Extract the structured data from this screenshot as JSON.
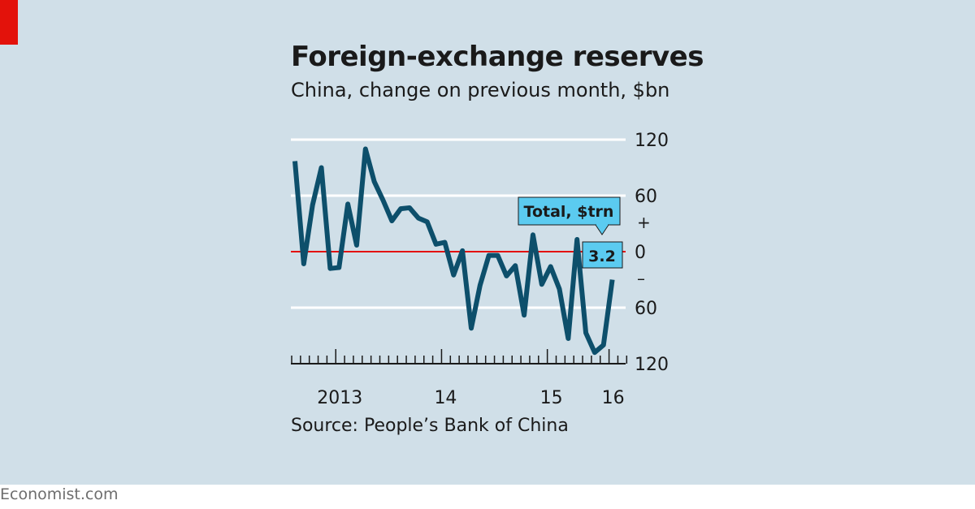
{
  "title": "Foreign-exchange reserves",
  "subtitle": "China, change on previous month, $bn",
  "source": "Source: People’s Bank of China",
  "footer": "Economist.com",
  "colors": {
    "background": "#d0dfe8",
    "line": "#0d4f6b",
    "zero_line": "#e3120b",
    "gridline": "#ffffff",
    "label_box": "#5bcbf0",
    "brand_tab": "#e3120b"
  },
  "chart_data": {
    "type": "line",
    "title": "Foreign-exchange reserves",
    "subtitle": "China, change on previous month, $bn",
    "ylim": [
      -120,
      120
    ],
    "y_ticks": [
      {
        "value": 120,
        "label": "120"
      },
      {
        "value": 60,
        "label": "60"
      },
      {
        "value": 0,
        "label": "0"
      },
      {
        "value": -60,
        "label": "60"
      },
      {
        "value": -120,
        "label": "120"
      }
    ],
    "sign_labels": {
      "positive": "+",
      "negative": "–"
    },
    "x_ticks": [
      {
        "index": 5,
        "label": "2013"
      },
      {
        "index": 17,
        "label": "14"
      },
      {
        "index": 29,
        "label": "15"
      },
      {
        "index": 36,
        "label": "16"
      }
    ],
    "grid": true,
    "series": [
      {
        "values": [
          97,
          -13,
          50,
          90,
          -18,
          -17,
          51,
          7,
          110,
          75,
          55,
          33,
          46,
          47,
          36,
          32,
          8,
          10,
          -25,
          1,
          -82,
          -36,
          -4,
          -4,
          -26,
          -15,
          -68,
          18,
          -35,
          -16,
          -40,
          -93,
          13,
          -87,
          -108,
          -100,
          -30
        ]
      }
    ],
    "annotations": [
      {
        "label": "Total, $trn",
        "value": "3.2"
      }
    ]
  }
}
